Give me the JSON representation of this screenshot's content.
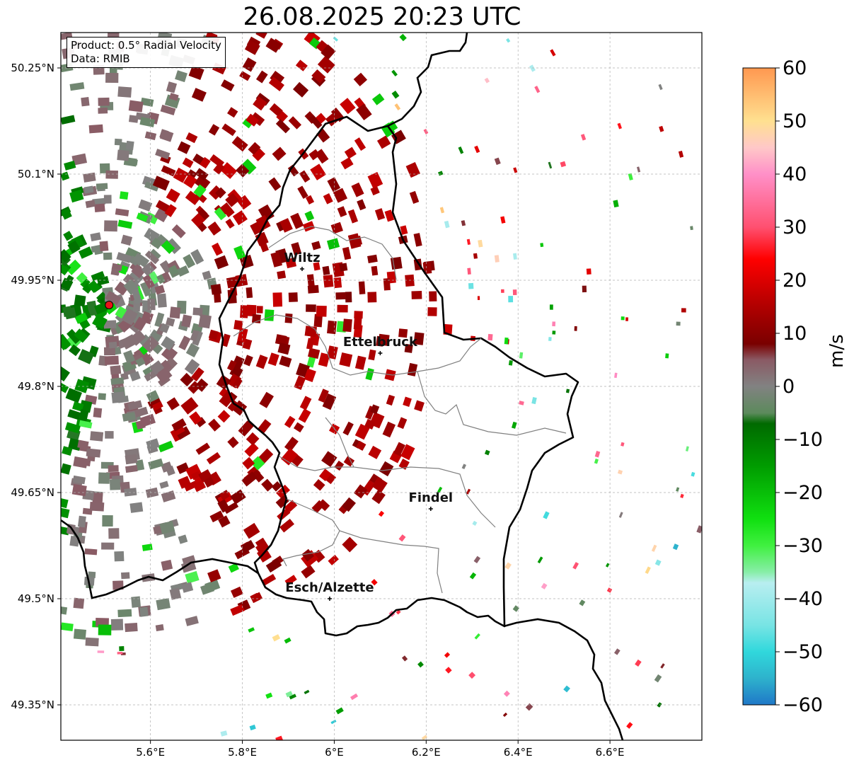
{
  "title": "26.08.2025 20:23 UTC",
  "info": {
    "product": "Product: 0.5° Radial Velocity",
    "source": "Data: RMIB"
  },
  "axes": {
    "lat_ticks": [
      "50.25°N",
      "50.1°N",
      "49.95°N",
      "49.8°N",
      "49.65°N",
      "49.5°N",
      "49.35°N"
    ],
    "lat_values": [
      50.25,
      50.1,
      49.95,
      49.8,
      49.65,
      49.5,
      49.35
    ],
    "lon_ticks": [
      "5.6°E",
      "5.8°E",
      "6°E",
      "6.2°E",
      "6.4°E",
      "6.6°E"
    ],
    "lon_values": [
      5.6,
      5.8,
      6.0,
      6.2,
      6.4,
      6.6
    ],
    "lon_range": [
      5.405,
      6.8
    ],
    "lat_range": [
      49.3,
      50.3
    ]
  },
  "places": [
    {
      "name": "Wiltz",
      "lon": 5.93,
      "lat": 49.966
    },
    {
      "name": "Ettelbruck",
      "lon": 6.1,
      "lat": 49.847
    },
    {
      "name": "Findel",
      "lon": 6.21,
      "lat": 49.627
    },
    {
      "name": "Esch/Alzette",
      "lon": 5.99,
      "lat": 49.5
    }
  ],
  "radar_site": {
    "lon": 5.51,
    "lat": 49.915,
    "color": "#e8141a"
  },
  "colorbar": {
    "label": "m/s",
    "min": -60,
    "max": 60,
    "ticks": [
      "60",
      "50",
      "40",
      "30",
      "20",
      "10",
      "0",
      "−10",
      "−20",
      "−30",
      "−40",
      "−50",
      "−60"
    ],
    "tick_values": [
      60,
      50,
      40,
      30,
      20,
      10,
      0,
      -10,
      -20,
      -30,
      -40,
      -50,
      -60
    ],
    "stops": [
      {
        "v": -60,
        "color": "#1f78c8"
      },
      {
        "v": -55,
        "color": "#2eb2cc"
      },
      {
        "v": -50,
        "color": "#30d8dc"
      },
      {
        "v": -45,
        "color": "#78e4e4"
      },
      {
        "v": -37,
        "color": "#b8eef0"
      },
      {
        "v": -35,
        "color": "#88eea8"
      },
      {
        "v": -30,
        "color": "#40f040"
      },
      {
        "v": -25,
        "color": "#10e010"
      },
      {
        "v": -15,
        "color": "#009c00"
      },
      {
        "v": -7,
        "color": "#006a00"
      },
      {
        "v": -5,
        "color": "#5c8a5c"
      },
      {
        "v": 0,
        "color": "#828282"
      },
      {
        "v": 5,
        "color": "#8a5a64"
      },
      {
        "v": 8,
        "color": "#7a0000"
      },
      {
        "v": 15,
        "color": "#b00000"
      },
      {
        "v": 24,
        "color": "#ff0000"
      },
      {
        "v": 30,
        "color": "#ff5070"
      },
      {
        "v": 40,
        "color": "#ff90c8"
      },
      {
        "v": 45,
        "color": "#ffc8c8"
      },
      {
        "v": 50,
        "color": "#ffe090"
      },
      {
        "v": 60,
        "color": "#ff9850"
      }
    ]
  },
  "colors": {
    "border": "#000000",
    "canton": "#808080",
    "grid": "#b0b0b0"
  }
}
